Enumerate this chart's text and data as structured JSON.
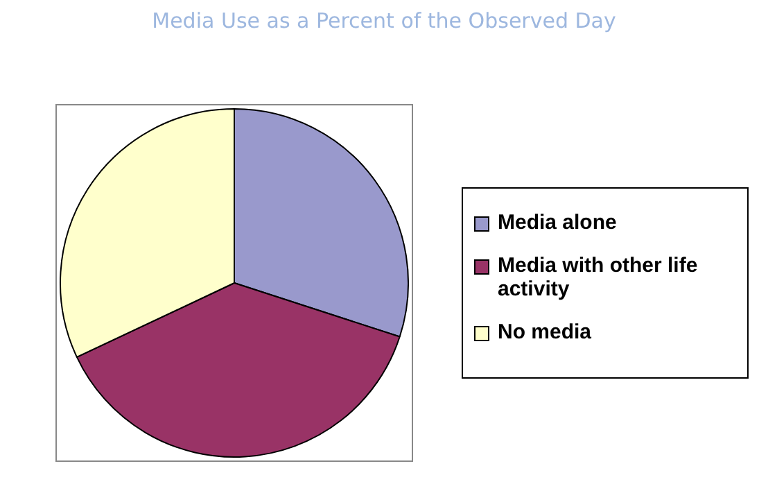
{
  "chart_data": {
    "type": "pie",
    "title": "Media Use as a Percent of the Observed Day",
    "categories": [
      "Media alone",
      "Media with other life activity",
      "No media"
    ],
    "values": [
      30,
      38,
      32
    ],
    "colors": [
      "#9999cc",
      "#993366",
      "#ffffcc"
    ],
    "legend": "right"
  }
}
